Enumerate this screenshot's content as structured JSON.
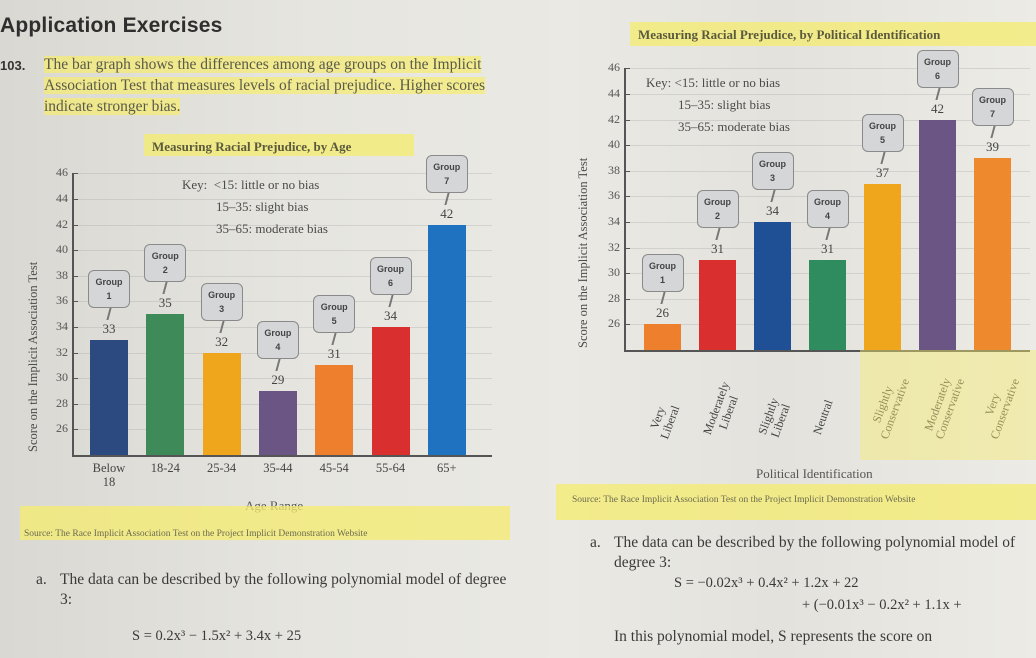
{
  "page": {
    "heading": "Application Exercises",
    "exercise_number": "103.",
    "intro_text": "The bar graph shows the differences among age groups on the Implicit Association Test that measures levels of racial prejudice. Higher scores indicate stronger bias."
  },
  "key": {
    "title": "Key:",
    "lines": [
      "<15: little or no bias",
      "15–35: slight bias",
      "35–65: moderate bias"
    ]
  },
  "left_chart": {
    "title": "Measuring Racial Prejudice, by Age",
    "ylabel": "Score on the Implicit Association Test",
    "xlabel": "Age Range",
    "source": "Source: The Race Implicit Association Test on the Project Implicit Demonstration Website",
    "part_a": {
      "label": "a.",
      "text": "The data can be described by the following polynomial model of degree 3:",
      "equation": "S = 0.2x³ − 1.5x² + 3.4x + 25"
    }
  },
  "right_chart": {
    "title": "Measuring Racial Prejudice, by Political Identification",
    "ylabel": "Score on the Implicit Association Test",
    "xlabel": "Political Identification",
    "source": "Source: The Race Implicit Association Test on the Project Implicit Demonstration Website",
    "part_a": {
      "label": "a.",
      "text": "The data can be described by the following polynomial model of degree 3:",
      "equation_1": "S = −0.02x³ + 0.4x² + 1.2x + 22",
      "equation_2": "+ (−0.01x³ − 0.2x² + 1.1x +",
      "trailing_text": "In this polynomial model, S represents the score on"
    }
  },
  "chart_data": [
    {
      "type": "bar",
      "title": "Measuring Racial Prejudice, by Age",
      "xlabel": "Age Range",
      "ylabel": "Score on the Implicit Association Test",
      "categories": [
        "Below 18",
        "18-24",
        "25-34",
        "35-44",
        "45-54",
        "55-64",
        "65+"
      ],
      "values": [
        33,
        35,
        32,
        29,
        31,
        34,
        42
      ],
      "group_labels": [
        "Group 1",
        "Group 2",
        "Group 3",
        "Group 4",
        "Group 5",
        "Group 6",
        "Group 7"
      ],
      "colors": [
        "#2d4a80",
        "#3e8a58",
        "#f0a61c",
        "#6a5585",
        "#ee7f2d",
        "#d92f2f",
        "#1f72bf"
      ],
      "yticks": [
        26,
        28,
        30,
        32,
        34,
        36,
        38,
        40,
        42,
        44,
        46
      ],
      "ylim": [
        24,
        46
      ],
      "grid": true,
      "legend": "Key: <15: little or no bias; 15–35: slight bias; 35–65: moderate bias"
    },
    {
      "type": "bar",
      "title": "Measuring Racial Prejudice, by Political Identification",
      "xlabel": "Political Identification",
      "ylabel": "Score on the Implicit Association Test",
      "categories": [
        "Very Liberal",
        "Moderately Liberal",
        "Slightly Liberal",
        "Neutral",
        "Slightly Conservative",
        "Moderately Conservative",
        "Very Conservative"
      ],
      "values": [
        26,
        31,
        34,
        31,
        37,
        42,
        39
      ],
      "group_labels": [
        "Group 1",
        "Group 2",
        "Group 3",
        "Group 4",
        "Group 5",
        "Group 6",
        "Group 7"
      ],
      "colors": [
        "#ee7f2d",
        "#d92f2f",
        "#1f4f94",
        "#2f8c5e",
        "#f0a61c",
        "#6a5585",
        "#ee8a2d"
      ],
      "yticks": [
        26,
        28,
        30,
        32,
        34,
        36,
        38,
        40,
        42,
        44,
        46
      ],
      "ylim": [
        24,
        46
      ],
      "grid": true,
      "legend": "Key: <15: little or no bias; 15–35: slight bias; 35–65: moderate bias"
    }
  ]
}
